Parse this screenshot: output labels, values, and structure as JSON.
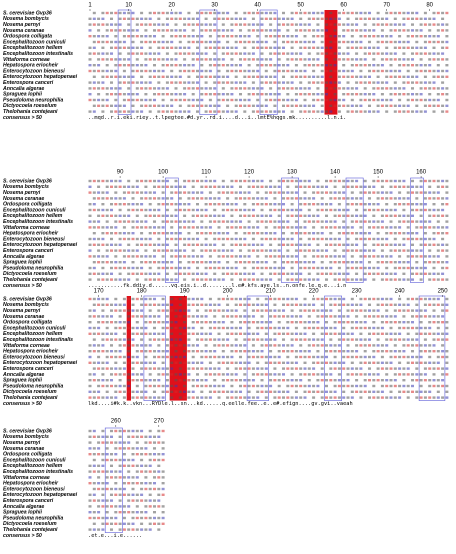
{
  "species": [
    "S. cerevisiae Gvp36",
    "Nosema bombycis",
    "Nosema pernyi",
    "Nosema ceranae",
    "Ordospora colligata",
    "Encephalitozoon cuniculi",
    "Encephalitozoon hellem",
    "Encephalitozoon intestinalis",
    "Vittaforma corneae",
    "Hepatospora eriocheir",
    "Enterocytozoon bieneusi",
    "Enterocytozoon hepatopenaei",
    "Enterospora canceri",
    "Anncalia algerae",
    "Spraguea lophii",
    "Pseudoloma neurophilia",
    "Dictyocoela roeselum",
    "Thelohania contejeani",
    "consensus > 50"
  ],
  "blocks": [
    {
      "ruler": [
        1,
        10,
        20,
        30,
        40,
        50,
        60,
        70,
        80
      ],
      "consensus": "..mqd..r.i.eki.riey..t.lpegtee.#d.yr..rd.i....d...i..lmtE%hqgs.mk..........l.n.i."
    },
    {
      "ruler": [
        90,
        100,
        110,
        120,
        130,
        140,
        150,
        160
      ],
      "consensus": "...........fk.ddiy.d......vq.eis.i..d........l.e#.kfs.aye.ls..n.onfe.le.q.e...i.n"
    },
    {
      "ruler": [
        170,
        180,
        190,
        200,
        210,
        220,
        230,
        240,
        250
      ],
      "consensus": "lkd....i#k.k..vkn...RYDle.l..sn...kd......q.eelle.fee..e..e#.efign....gv.gvi..vaeah"
    },
    {
      "ruler": [
        260,
        270
      ],
      "consensus": ".et.e...i.e......"
    }
  ]
}
